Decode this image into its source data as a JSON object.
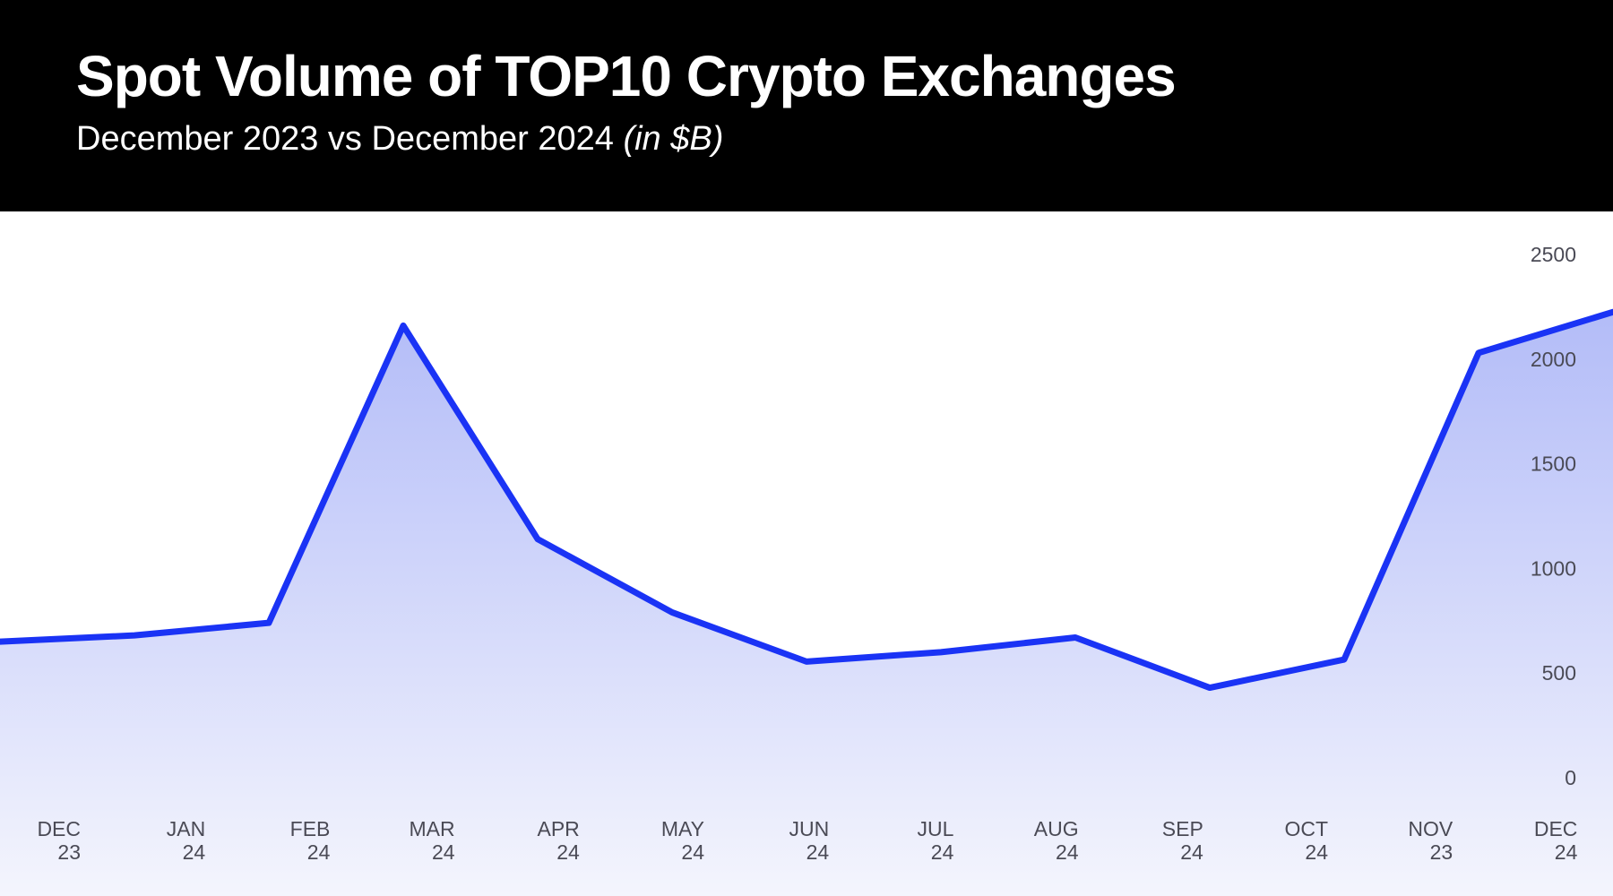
{
  "chart_data": {
    "type": "area",
    "title": "Spot Volume of TOP10 Crypto Exchanges",
    "subtitle": "December 2023 vs December 2024",
    "subtitle_unit": "(in $B)",
    "categories": [
      [
        "DEC",
        "23"
      ],
      [
        "JAN",
        "24"
      ],
      [
        "FEB",
        "24"
      ],
      [
        "MAR",
        "24"
      ],
      [
        "APR",
        "24"
      ],
      [
        "MAY",
        "24"
      ],
      [
        "JUN",
        "24"
      ],
      [
        "JUL",
        "24"
      ],
      [
        "AUG",
        "24"
      ],
      [
        "SEP",
        "24"
      ],
      [
        "OCT",
        "24"
      ],
      [
        "NOV",
        "23"
      ],
      [
        "DEC",
        "24"
      ]
    ],
    "values": [
      650,
      680,
      740,
      2160,
      1140,
      790,
      555,
      600,
      670,
      430,
      565,
      2030,
      2225
    ],
    "ylim": [
      0,
      2500
    ],
    "yticks": [
      "0",
      "500",
      "1000",
      "1500",
      "2000",
      "2500"
    ],
    "y_axis_side": "right",
    "grid": false,
    "colors": {
      "line": "#1a33f5",
      "fill_top": "#b3bcf8",
      "fill_bottom": "#f4f5fd",
      "header_bg": "#000000"
    }
  }
}
